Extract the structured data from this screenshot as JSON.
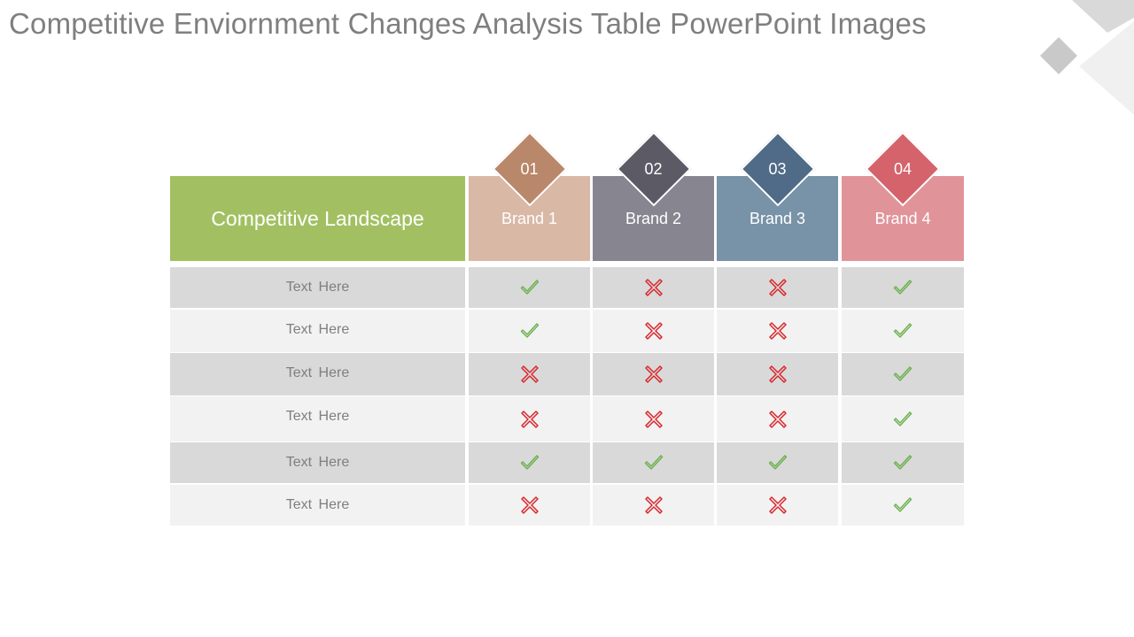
{
  "title": "Competitive Enviornment Changes Analysis Table PowerPoint Images",
  "colors": {
    "landscape": "#a2c062",
    "band_dark": "#d9d9d9",
    "band_light": "#f2f2f2",
    "check": "#6ab04c",
    "cross": "#d9262c"
  },
  "table": {
    "header_label": "Competitive Landscape",
    "brands": [
      {
        "number": "01",
        "name": "Brand 1",
        "badge_color": "#b9876a",
        "header_color": "#d9b8a6"
      },
      {
        "number": "02",
        "name": "Brand 2",
        "badge_color": "#5c5a65",
        "header_color": "#878690"
      },
      {
        "number": "03",
        "name": "Brand 3",
        "badge_color": "#4f6b87",
        "header_color": "#7892a7"
      },
      {
        "number": "04",
        "name": "Brand 4",
        "badge_color": "#d4636b",
        "header_color": "#e0949a"
      }
    ],
    "rows": [
      {
        "label": "Text  Here",
        "values": [
          "check",
          "cross",
          "cross",
          "check"
        ]
      },
      {
        "label": "Text  Here",
        "values": [
          "check",
          "cross",
          "cross",
          "check"
        ]
      },
      {
        "label": "Text  Here",
        "values": [
          "cross",
          "cross",
          "cross",
          "check"
        ]
      },
      {
        "label": "Text  Here",
        "values": [
          "cross",
          "cross",
          "cross",
          "check"
        ]
      },
      {
        "label": "Text  Here",
        "values": [
          "check",
          "check",
          "check",
          "check"
        ]
      },
      {
        "label": "Text  Here",
        "values": [
          "cross",
          "cross",
          "cross",
          "check"
        ]
      }
    ]
  }
}
